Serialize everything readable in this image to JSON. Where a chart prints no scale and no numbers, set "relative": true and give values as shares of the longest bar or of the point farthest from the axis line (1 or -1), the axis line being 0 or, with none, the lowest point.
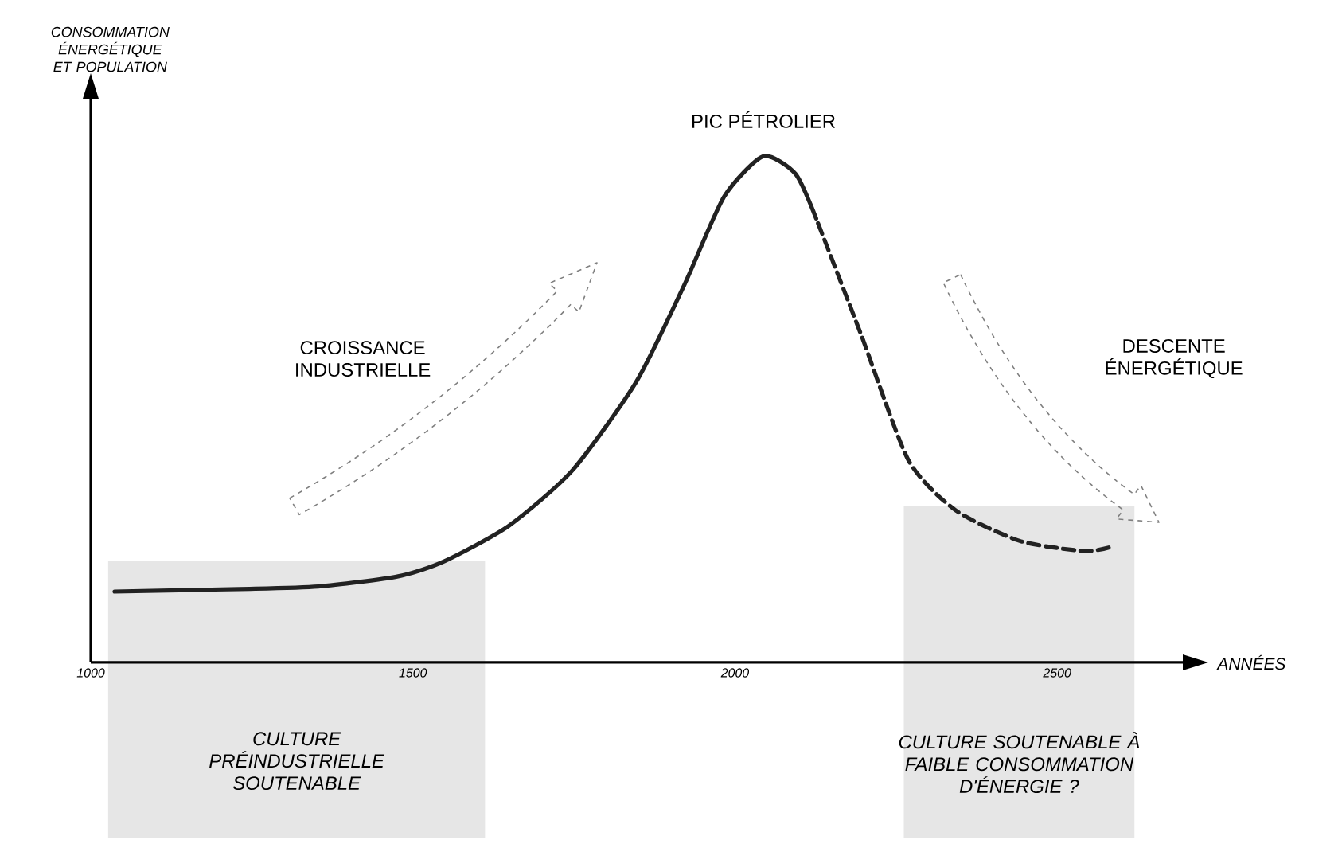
{
  "chart_data": {
    "type": "line",
    "relative": true,
    "xlabel": "ANNÉES",
    "xlim": [
      1000,
      2700
    ],
    "xticks": [
      1000,
      1500,
      2000,
      2500
    ],
    "series": [
      {
        "color": "#222222",
        "line_style": "solid",
        "x": [
          1037,
          1230,
          1353,
          1477,
          1549,
          1649,
          1748,
          1847,
          1921,
          1983,
          2044,
          2094,
          2126
        ],
        "values": [
          0.14,
          0.145,
          0.15,
          0.17,
          0.2,
          0.27,
          0.38,
          0.555,
          0.745,
          0.92,
          1,
          0.965,
          0.877
        ]
      },
      {
        "color": "#222222",
        "line_style": "dashed",
        "x": [
          2126,
          2195,
          2269,
          2343,
          2442,
          2541,
          2580
        ],
        "values": [
          0.877,
          0.65,
          0.4,
          0.3,
          0.24,
          0.22,
          0.227
        ]
      }
    ],
    "bands": [
      {
        "axis": "x",
        "from": 1027,
        "to": 1612,
        "label": "CULTURE PRÉINDUSTRIELLE SOUTENABLE",
        "color": "#e6e6e6"
      },
      {
        "axis": "x",
        "from": 2262,
        "to": 2620,
        "label": "CULTURE SOUTENABLE À FAIBLE CONSOMMATION D'ÉNERGIE ?",
        "color": "#e6e6e6"
      }
    ],
    "annotations": [
      {
        "text": "PIC PÉTROLIER",
        "x": 2044,
        "y": 1
      },
      "CROISSANCE INDUSTRIELLE",
      "DESCENTE ÉNERGÉTIQUE",
      "CONSOMMATION ÉNERGÉTIQUE ET POPULATION"
    ]
  }
}
